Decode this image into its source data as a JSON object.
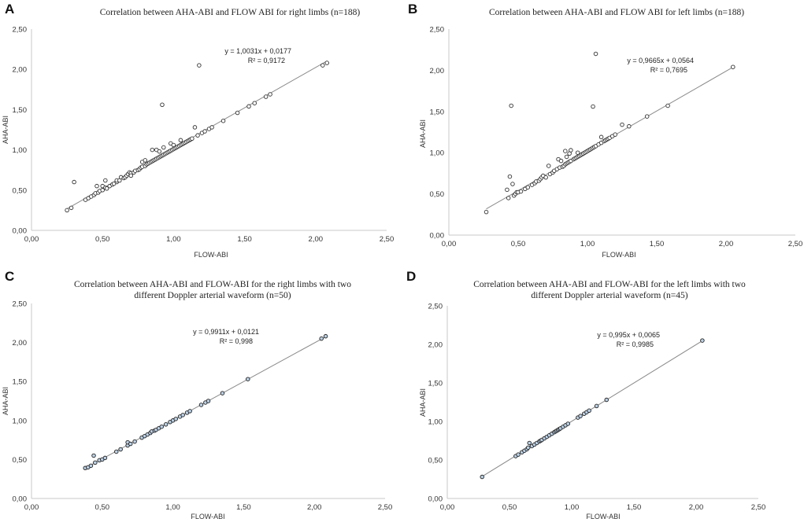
{
  "chart_data": [
    {
      "type": "scatter",
      "panel": "A",
      "title": "Correlation between AHA-ABI and FLOW ABI for right limbs (n=188)",
      "title_lines": [
        "Correlation between AHA-ABI and FLOW ABI for right limbs (n=188)"
      ],
      "xlabel": "FLOW-ABI",
      "ylabel": "AHA-ABI",
      "xlim": [
        0,
        2.5
      ],
      "ylim": [
        0,
        2.5
      ],
      "xticks": [
        "0,00",
        "0,50",
        "1,00",
        "1,50",
        "2,00",
        "2,50"
      ],
      "yticks": [
        "0,00",
        "0,50",
        "1,00",
        "1,50",
        "2,00",
        "2,50"
      ],
      "trendline": {
        "slope": 1.0031,
        "intercept": 0.0177,
        "x_range": [
          0.25,
          2.08
        ],
        "equation": "y = 1,0031x + 0,0177",
        "r2": "R² = 0,9172"
      },
      "marker": "open",
      "points": [
        [
          0.25,
          0.25
        ],
        [
          0.28,
          0.28
        ],
        [
          0.3,
          0.6
        ],
        [
          0.38,
          0.38
        ],
        [
          0.4,
          0.4
        ],
        [
          0.42,
          0.42
        ],
        [
          0.44,
          0.44
        ],
        [
          0.45,
          0.46
        ],
        [
          0.46,
          0.55
        ],
        [
          0.47,
          0.47
        ],
        [
          0.48,
          0.49
        ],
        [
          0.5,
          0.5
        ],
        [
          0.5,
          0.55
        ],
        [
          0.52,
          0.53
        ],
        [
          0.52,
          0.62
        ],
        [
          0.53,
          0.52
        ],
        [
          0.55,
          0.55
        ],
        [
          0.57,
          0.57
        ],
        [
          0.58,
          0.58
        ],
        [
          0.6,
          0.6
        ],
        [
          0.6,
          0.62
        ],
        [
          0.62,
          0.62
        ],
        [
          0.63,
          0.66
        ],
        [
          0.65,
          0.65
        ],
        [
          0.66,
          0.66
        ],
        [
          0.67,
          0.68
        ],
        [
          0.68,
          0.7
        ],
        [
          0.69,
          0.72
        ],
        [
          0.7,
          0.71
        ],
        [
          0.7,
          0.68
        ],
        [
          0.72,
          0.72
        ],
        [
          0.73,
          0.74
        ],
        [
          0.75,
          0.75
        ],
        [
          0.76,
          0.76
        ],
        [
          0.77,
          0.78
        ],
        [
          0.78,
          0.79
        ],
        [
          0.78,
          0.85
        ],
        [
          0.8,
          0.8
        ],
        [
          0.8,
          0.87
        ],
        [
          0.81,
          0.82
        ],
        [
          0.82,
          0.83
        ],
        [
          0.83,
          0.84
        ],
        [
          0.84,
          0.85
        ],
        [
          0.85,
          0.86
        ],
        [
          0.85,
          1.0
        ],
        [
          0.86,
          0.87
        ],
        [
          0.87,
          0.88
        ],
        [
          0.88,
          0.89
        ],
        [
          0.88,
          1.0
        ],
        [
          0.89,
          0.9
        ],
        [
          0.9,
          0.91
        ],
        [
          0.9,
          0.98
        ],
        [
          0.91,
          0.92
        ],
        [
          0.92,
          0.93
        ],
        [
          0.92,
          1.56
        ],
        [
          0.93,
          0.94
        ],
        [
          0.93,
          1.03
        ],
        [
          0.94,
          0.95
        ],
        [
          0.95,
          0.96
        ],
        [
          0.96,
          0.97
        ],
        [
          0.97,
          0.98
        ],
        [
          0.98,
          0.99
        ],
        [
          0.98,
          1.08
        ],
        [
          0.99,
          1.0
        ],
        [
          1.0,
          1.01
        ],
        [
          1.0,
          1.06
        ],
        [
          1.01,
          1.02
        ],
        [
          1.02,
          1.03
        ],
        [
          1.03,
          1.04
        ],
        [
          1.04,
          1.05
        ],
        [
          1.05,
          1.06
        ],
        [
          1.05,
          1.12
        ],
        [
          1.06,
          1.07
        ],
        [
          1.07,
          1.08
        ],
        [
          1.08,
          1.09
        ],
        [
          1.09,
          1.1
        ],
        [
          1.1,
          1.11
        ],
        [
          1.11,
          1.12
        ],
        [
          1.12,
          1.13
        ],
        [
          1.13,
          1.14
        ],
        [
          1.15,
          1.28
        ],
        [
          1.17,
          1.18
        ],
        [
          1.18,
          2.05
        ],
        [
          1.2,
          1.21
        ],
        [
          1.22,
          1.23
        ],
        [
          1.25,
          1.26
        ],
        [
          1.27,
          1.28
        ],
        [
          1.35,
          1.36
        ],
        [
          1.45,
          1.46
        ],
        [
          1.53,
          1.54
        ],
        [
          1.57,
          1.58
        ],
        [
          1.65,
          1.66
        ],
        [
          1.68,
          1.69
        ],
        [
          2.05,
          2.05
        ],
        [
          2.08,
          2.08
        ]
      ]
    },
    {
      "type": "scatter",
      "panel": "B",
      "title": "Correlation between AHA-ABI and FLOW ABI for left limbs (n=188)",
      "title_lines": [
        "Correlation between AHA-ABI and FLOW ABI for left limbs (n=188)"
      ],
      "xlabel": "FLOW-ABI",
      "ylabel": "AHA-ABI",
      "xlim": [
        0,
        2.5
      ],
      "ylim": [
        0,
        2.5
      ],
      "xticks": [
        "0,00",
        "0,50",
        "1,00",
        "1,50",
        "2,00",
        "2,50"
      ],
      "yticks": [
        "0,00",
        "0,50",
        "1,00",
        "1,50",
        "2,00",
        "2,50"
      ],
      "trendline": {
        "slope": 0.9665,
        "intercept": 0.0564,
        "x_range": [
          0.27,
          2.05
        ],
        "equation": "y = 0,9665x + 0,0564",
        "r2": "R² = 0,7695"
      },
      "marker": "open",
      "points": [
        [
          0.27,
          0.28
        ],
        [
          0.42,
          0.55
        ],
        [
          0.43,
          0.45
        ],
        [
          0.44,
          0.71
        ],
        [
          0.45,
          1.57
        ],
        [
          0.46,
          0.62
        ],
        [
          0.47,
          0.48
        ],
        [
          0.48,
          0.5
        ],
        [
          0.49,
          0.52
        ],
        [
          0.5,
          0.52
        ],
        [
          0.52,
          0.53
        ],
        [
          0.55,
          0.56
        ],
        [
          0.57,
          0.58
        ],
        [
          0.6,
          0.61
        ],
        [
          0.62,
          0.63
        ],
        [
          0.63,
          0.65
        ],
        [
          0.65,
          0.66
        ],
        [
          0.66,
          0.68
        ],
        [
          0.67,
          0.7
        ],
        [
          0.68,
          0.72
        ],
        [
          0.7,
          0.7
        ],
        [
          0.72,
          0.84
        ],
        [
          0.73,
          0.74
        ],
        [
          0.75,
          0.76
        ],
        [
          0.76,
          0.78
        ],
        [
          0.78,
          0.8
        ],
        [
          0.79,
          0.92
        ],
        [
          0.8,
          0.82
        ],
        [
          0.81,
          0.9
        ],
        [
          0.82,
          0.83
        ],
        [
          0.83,
          0.84
        ],
        [
          0.84,
          0.86
        ],
        [
          0.84,
          1.02
        ],
        [
          0.85,
          0.87
        ],
        [
          0.85,
          0.95
        ],
        [
          0.86,
          0.88
        ],
        [
          0.87,
          0.89
        ],
        [
          0.87,
          0.99
        ],
        [
          0.88,
          0.9
        ],
        [
          0.88,
          1.03
        ],
        [
          0.9,
          0.92
        ],
        [
          0.91,
          0.93
        ],
        [
          0.92,
          0.94
        ],
        [
          0.93,
          0.95
        ],
        [
          0.93,
          1.0
        ],
        [
          0.94,
          0.96
        ],
        [
          0.95,
          0.97
        ],
        [
          0.96,
          0.98
        ],
        [
          0.97,
          0.99
        ],
        [
          0.98,
          1.0
        ],
        [
          0.99,
          1.01
        ],
        [
          1.0,
          1.02
        ],
        [
          1.01,
          1.03
        ],
        [
          1.02,
          1.04
        ],
        [
          1.03,
          1.05
        ],
        [
          1.04,
          1.06
        ],
        [
          1.04,
          1.56
        ],
        [
          1.05,
          1.07
        ],
        [
          1.06,
          2.2
        ],
        [
          1.06,
          1.08
        ],
        [
          1.08,
          1.1
        ],
        [
          1.1,
          1.12
        ],
        [
          1.1,
          1.19
        ],
        [
          1.12,
          1.14
        ],
        [
          1.13,
          1.15
        ],
        [
          1.14,
          1.16
        ],
        [
          1.15,
          1.17
        ],
        [
          1.16,
          1.18
        ],
        [
          1.18,
          1.2
        ],
        [
          1.2,
          1.22
        ],
        [
          1.25,
          1.34
        ],
        [
          1.3,
          1.32
        ],
        [
          1.43,
          1.44
        ],
        [
          1.58,
          1.57
        ],
        [
          2.05,
          2.04
        ]
      ]
    },
    {
      "type": "scatter",
      "panel": "C",
      "title": "Correlation between AHA-ABI and FLOW-ABI  for the right limbs with two different Doppler arterial waveform (n=50)",
      "title_lines": [
        "Correlation between AHA-ABI and FLOW-ABI  for the right limbs with two",
        "different Doppler arterial waveform (n=50)"
      ],
      "xlabel": "FLOW-ABI",
      "ylabel": "AHA-ABI",
      "xlim": [
        0,
        2.5
      ],
      "ylim": [
        0,
        2.5
      ],
      "xticks": [
        "0,00",
        "0,50",
        "1,00",
        "1,50",
        "2,00",
        "2,50"
      ],
      "yticks": [
        "0,00",
        "0,50",
        "1,00",
        "1,50",
        "2,00",
        "2,50"
      ],
      "trendline": {
        "slope": 0.9911,
        "intercept": 0.0121,
        "x_range": [
          0.38,
          2.08
        ],
        "equation": "y = 0,9911x + 0,0121",
        "r2": "R² = 0,998"
      },
      "marker": "filled",
      "points": [
        [
          0.38,
          0.39
        ],
        [
          0.4,
          0.4
        ],
        [
          0.42,
          0.42
        ],
        [
          0.44,
          0.55
        ],
        [
          0.45,
          0.46
        ],
        [
          0.48,
          0.49
        ],
        [
          0.5,
          0.5
        ],
        [
          0.52,
          0.52
        ],
        [
          0.6,
          0.6
        ],
        [
          0.63,
          0.63
        ],
        [
          0.68,
          0.68
        ],
        [
          0.68,
          0.72
        ],
        [
          0.7,
          0.7
        ],
        [
          0.73,
          0.73
        ],
        [
          0.78,
          0.78
        ],
        [
          0.8,
          0.8
        ],
        [
          0.82,
          0.82
        ],
        [
          0.84,
          0.84
        ],
        [
          0.85,
          0.86
        ],
        [
          0.87,
          0.87
        ],
        [
          0.88,
          0.88
        ],
        [
          0.9,
          0.9
        ],
        [
          0.92,
          0.92
        ],
        [
          0.95,
          0.95
        ],
        [
          0.98,
          0.98
        ],
        [
          1.0,
          1.0
        ],
        [
          1.02,
          1.02
        ],
        [
          1.05,
          1.05
        ],
        [
          1.07,
          1.07
        ],
        [
          1.1,
          1.1
        ],
        [
          1.12,
          1.12
        ],
        [
          1.2,
          1.2
        ],
        [
          1.23,
          1.23
        ],
        [
          1.25,
          1.25
        ],
        [
          1.35,
          1.35
        ],
        [
          1.53,
          1.53
        ],
        [
          2.05,
          2.05
        ],
        [
          2.08,
          2.08
        ]
      ]
    },
    {
      "type": "scatter",
      "panel": "D",
      "title": "Correlation between AHA-ABI and FLOW-ABI  for the left limbs with two different Doppler arterial waveform (n=45)",
      "title_lines": [
        "Correlation between AHA-ABI and FLOW-ABI  for the left limbs with two",
        "different Doppler arterial waveform (n=45)"
      ],
      "xlabel": "FLOW-ABI",
      "ylabel": "AHA-ABI",
      "xlim": [
        0,
        2.5
      ],
      "ylim": [
        0,
        2.5
      ],
      "xticks": [
        "0,00",
        "0,50",
        "1,00",
        "1,50",
        "2,00",
        "2,50"
      ],
      "yticks": [
        "0,00",
        "0,50",
        "1,00",
        "1,50",
        "2,00",
        "2,50"
      ],
      "trendline": {
        "slope": 0.995,
        "intercept": 0.0065,
        "x_range": [
          0.28,
          2.05
        ],
        "equation": "y = 0,995x + 0,0065",
        "r2": "R² = 0,9985"
      },
      "marker": "filled",
      "points": [
        [
          0.28,
          0.28
        ],
        [
          0.55,
          0.55
        ],
        [
          0.57,
          0.57
        ],
        [
          0.6,
          0.6
        ],
        [
          0.62,
          0.62
        ],
        [
          0.64,
          0.64
        ],
        [
          0.65,
          0.66
        ],
        [
          0.66,
          0.72
        ],
        [
          0.68,
          0.68
        ],
        [
          0.7,
          0.7
        ],
        [
          0.72,
          0.72
        ],
        [
          0.74,
          0.74
        ],
        [
          0.75,
          0.75
        ],
        [
          0.76,
          0.76
        ],
        [
          0.78,
          0.78
        ],
        [
          0.8,
          0.8
        ],
        [
          0.82,
          0.82
        ],
        [
          0.84,
          0.84
        ],
        [
          0.86,
          0.86
        ],
        [
          0.87,
          0.87
        ],
        [
          0.88,
          0.88
        ],
        [
          0.89,
          0.89
        ],
        [
          0.9,
          0.9
        ],
        [
          0.91,
          0.91
        ],
        [
          0.93,
          0.93
        ],
        [
          0.95,
          0.95
        ],
        [
          0.97,
          0.97
        ],
        [
          1.05,
          1.05
        ],
        [
          1.07,
          1.07
        ],
        [
          1.1,
          1.1
        ],
        [
          1.12,
          1.12
        ],
        [
          1.14,
          1.14
        ],
        [
          1.2,
          1.2
        ],
        [
          1.28,
          1.28
        ],
        [
          2.05,
          2.05
        ]
      ]
    }
  ]
}
